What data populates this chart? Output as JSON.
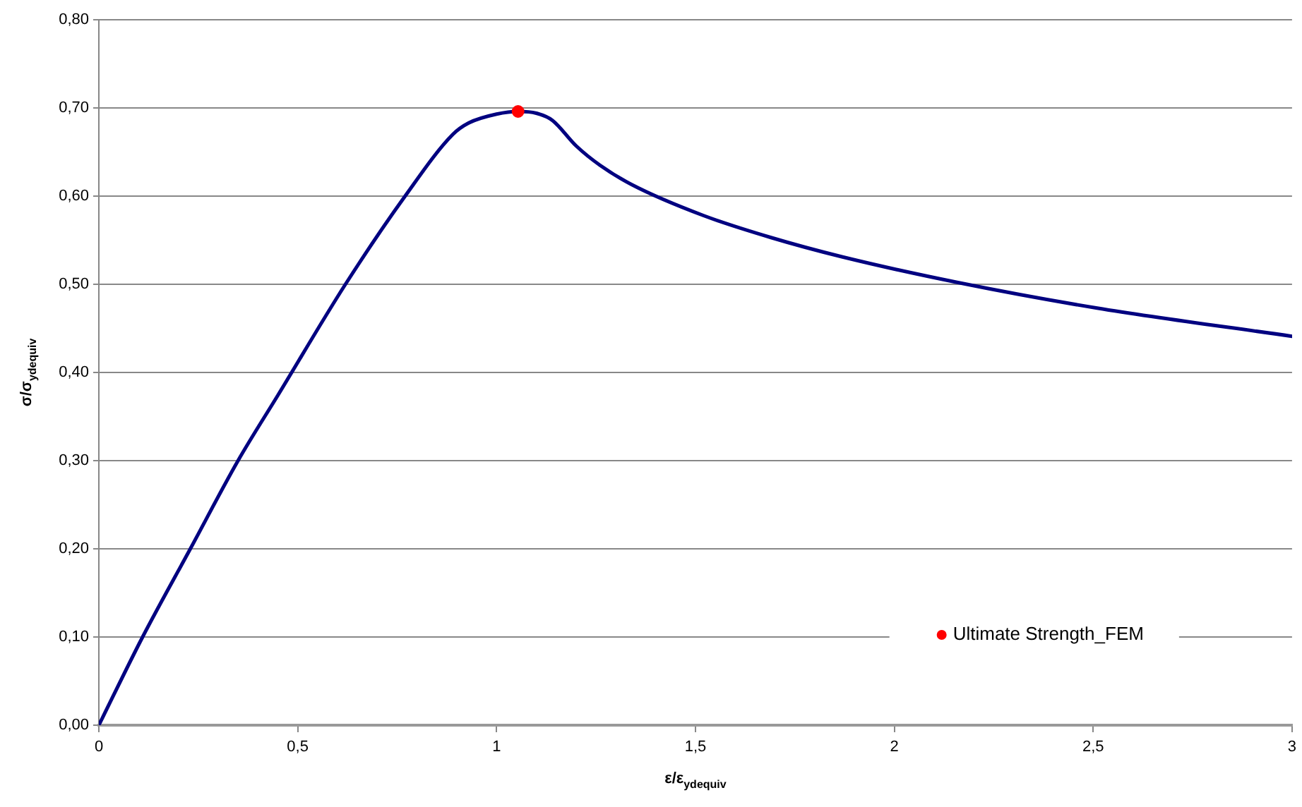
{
  "chart_data": {
    "type": "line",
    "xlabel": "ε/ε$_{ydequiv}$",
    "ylabel": "σ/σ$_{ydequiv}$",
    "xlim": [
      0,
      3
    ],
    "xticks": [
      0,
      {
        "value": 0.5,
        "label": "0,5"
      },
      1,
      {
        "value": 1.5,
        "label": "1,5"
      },
      2,
      {
        "value": 2.5,
        "label": "2,5"
      },
      3
    ],
    "ylim": [
      0,
      0.8
    ],
    "yticks": [
      {
        "value": 0,
        "label": "0,00"
      },
      {
        "value": 0.1,
        "label": "0,10"
      },
      {
        "value": 0.2,
        "label": "0,20"
      },
      {
        "value": 0.3,
        "label": "0,30"
      },
      {
        "value": 0.4,
        "label": "0,40"
      },
      {
        "value": 0.5,
        "label": "0,50"
      },
      {
        "value": 0.6,
        "label": "0,60"
      },
      {
        "value": 0.7,
        "label": "0,70"
      },
      {
        "value": 0.8,
        "label": "0,80"
      }
    ],
    "grid": "y",
    "legend": "bottom right",
    "line_style": "solid",
    "series": [
      {
        "color": "#000080",
        "x": [
          0,
          0.11,
          0.23,
          0.35,
          0.45,
          0.62,
          0.77,
          0.89,
          0.93,
          1.0,
          1.054,
          1.1,
          1.14,
          1.2,
          1.26,
          1.34,
          1.52,
          1.69,
          1.87,
          2.16,
          2.51,
          3.0
        ],
        "values": [
          0,
          0.1,
          0.2,
          0.3,
          0.374,
          0.5,
          0.6,
          0.67,
          0.683,
          0.693,
          0.696,
          0.694,
          0.686,
          0.657,
          0.635,
          0.613,
          0.578,
          0.553,
          0.531,
          0.502,
          0.473,
          0.441
        ]
      },
      {
        "type": "scatter",
        "name": "Ultimate Strength_FEM",
        "color": "#ff0000",
        "x": [
          1.054
        ],
        "values": [
          0.696
        ]
      }
    ]
  }
}
